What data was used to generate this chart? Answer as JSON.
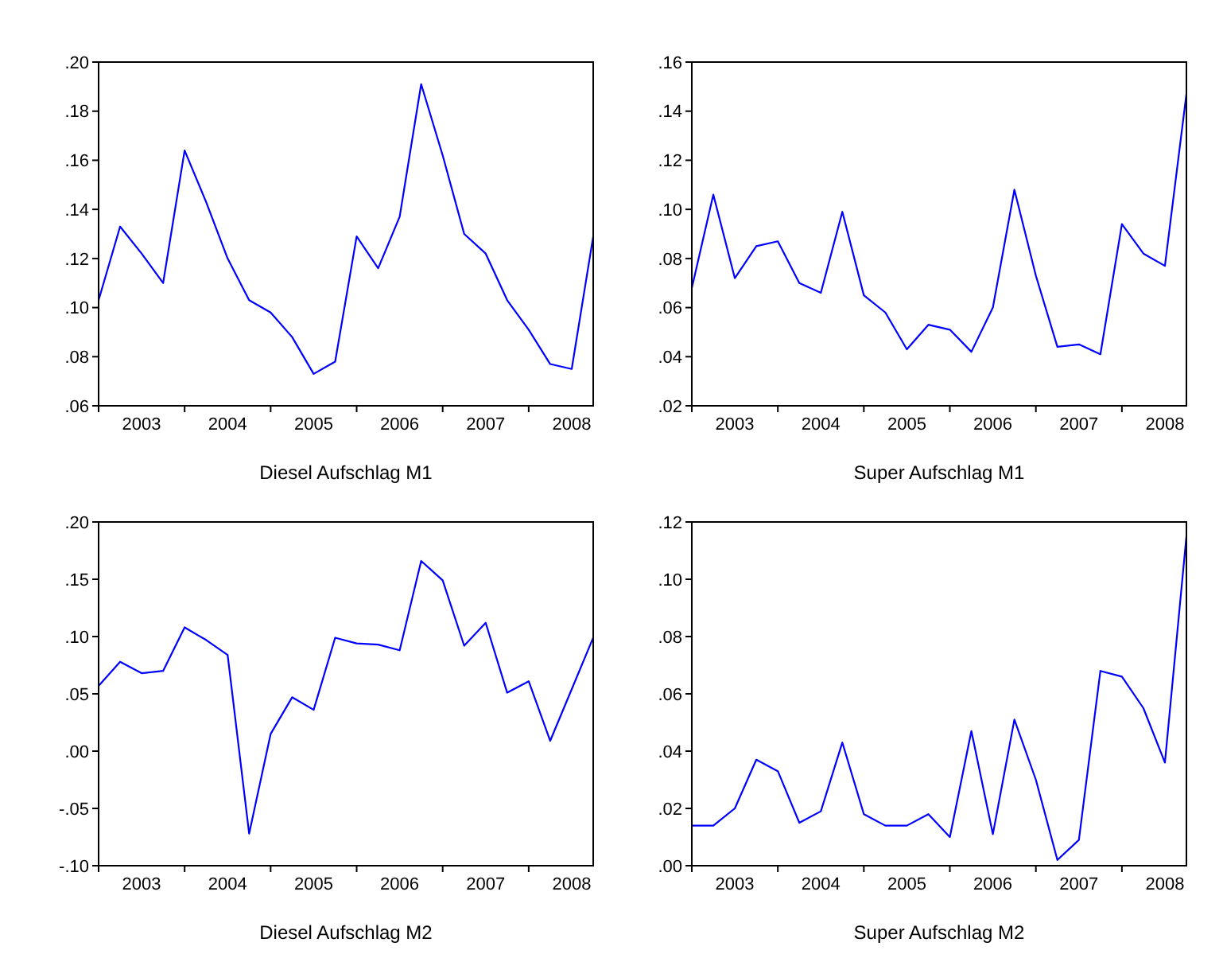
{
  "chart_data": [
    {
      "type": "line",
      "title": "Diesel Aufschlag M1",
      "xlim": [
        2003,
        2008.75
      ],
      "xticks": [
        {
          "value": 2003,
          "label": null
        },
        {
          "value": 2004,
          "label": null
        },
        {
          "value": 2005,
          "label": null
        },
        {
          "value": 2006,
          "label": null
        },
        {
          "value": 2007,
          "label": null
        },
        {
          "value": 2008,
          "label": null
        },
        {
          "value": 2003.5,
          "label": "2003"
        },
        {
          "value": 2004.5,
          "label": "2004"
        },
        {
          "value": 2005.5,
          "label": "2005"
        },
        {
          "value": 2006.5,
          "label": "2006"
        },
        {
          "value": 2007.5,
          "label": "2007"
        },
        {
          "value": 2008.5,
          "label": "2008"
        }
      ],
      "ylim": [
        0.06,
        0.2
      ],
      "yticks": [
        {
          "value": 0.06,
          "label": ".06"
        },
        {
          "value": 0.08,
          "label": ".08"
        },
        {
          "value": 0.1,
          "label": ".10"
        },
        {
          "value": 0.12,
          "label": ".12"
        },
        {
          "value": 0.14,
          "label": ".14"
        },
        {
          "value": 0.16,
          "label": ".16"
        },
        {
          "value": 0.18,
          "label": ".18"
        },
        {
          "value": 0.2,
          "label": ".20"
        }
      ],
      "grid": false,
      "marker": "none",
      "line_style": "solid",
      "x": [
        2003,
        2003.25,
        2003.5,
        2003.75,
        2004,
        2004.25,
        2004.5,
        2004.75,
        2005,
        2005.25,
        2005.5,
        2005.75,
        2006,
        2006.25,
        2006.5,
        2006.75,
        2007,
        2007.25,
        2007.5,
        2007.75,
        2008,
        2008.25,
        2008.5,
        2008.75
      ],
      "series": [
        {
          "color": "#0000ff",
          "values": [
            0.103,
            0.133,
            0.122,
            0.11,
            0.164,
            0.143,
            0.12,
            0.103,
            0.098,
            0.088,
            0.073,
            0.078,
            0.129,
            0.116,
            0.137,
            0.191,
            0.162,
            0.13,
            0.122,
            0.103,
            0.091,
            0.077,
            0.075,
            0.129
          ]
        }
      ]
    },
    {
      "type": "line",
      "title": "Super Aufschlag M1",
      "xlim": [
        2003,
        2008.75
      ],
      "xticks": [
        {
          "value": 2003,
          "label": null
        },
        {
          "value": 2004,
          "label": null
        },
        {
          "value": 2005,
          "label": null
        },
        {
          "value": 2006,
          "label": null
        },
        {
          "value": 2007,
          "label": null
        },
        {
          "value": 2008,
          "label": null
        },
        {
          "value": 2003.5,
          "label": "2003"
        },
        {
          "value": 2004.5,
          "label": "2004"
        },
        {
          "value": 2005.5,
          "label": "2005"
        },
        {
          "value": 2006.5,
          "label": "2006"
        },
        {
          "value": 2007.5,
          "label": "2007"
        },
        {
          "value": 2008.5,
          "label": "2008"
        }
      ],
      "ylim": [
        0.02,
        0.16
      ],
      "yticks": [
        {
          "value": 0.02,
          "label": ".02"
        },
        {
          "value": 0.04,
          "label": ".04"
        },
        {
          "value": 0.06,
          "label": ".06"
        },
        {
          "value": 0.08,
          "label": ".08"
        },
        {
          "value": 0.1,
          "label": ".10"
        },
        {
          "value": 0.12,
          "label": ".12"
        },
        {
          "value": 0.14,
          "label": ".14"
        },
        {
          "value": 0.16,
          "label": ".16"
        }
      ],
      "grid": false,
      "marker": "none",
      "line_style": "solid",
      "x": [
        2003,
        2003.25,
        2003.5,
        2003.75,
        2004,
        2004.25,
        2004.5,
        2004.75,
        2005,
        2005.25,
        2005.5,
        2005.75,
        2006,
        2006.25,
        2006.5,
        2006.75,
        2007,
        2007.25,
        2007.5,
        2007.75,
        2008,
        2008.25,
        2008.5,
        2008.75
      ],
      "series": [
        {
          "color": "#0000ff",
          "values": [
            0.068,
            0.106,
            0.072,
            0.085,
            0.087,
            0.07,
            0.066,
            0.099,
            0.065,
            0.058,
            0.043,
            0.053,
            0.051,
            0.042,
            0.06,
            0.108,
            0.073,
            0.044,
            0.045,
            0.041,
            0.094,
            0.082,
            0.077,
            0.147
          ]
        }
      ]
    },
    {
      "type": "line",
      "title": "Diesel Aufschlag M2",
      "xlim": [
        2003,
        2008.75
      ],
      "xticks": [
        {
          "value": 2003,
          "label": null
        },
        {
          "value": 2004,
          "label": null
        },
        {
          "value": 2005,
          "label": null
        },
        {
          "value": 2006,
          "label": null
        },
        {
          "value": 2007,
          "label": null
        },
        {
          "value": 2008,
          "label": null
        },
        {
          "value": 2003.5,
          "label": "2003"
        },
        {
          "value": 2004.5,
          "label": "2004"
        },
        {
          "value": 2005.5,
          "label": "2005"
        },
        {
          "value": 2006.5,
          "label": "2006"
        },
        {
          "value": 2007.5,
          "label": "2007"
        },
        {
          "value": 2008.5,
          "label": "2008"
        }
      ],
      "ylim": [
        -0.1,
        0.2
      ],
      "yticks": [
        {
          "value": -0.1,
          "label": "-.10"
        },
        {
          "value": -0.05,
          "label": "-.05"
        },
        {
          "value": 0,
          "label": ".00"
        },
        {
          "value": 0.05,
          "label": ".05"
        },
        {
          "value": 0.1,
          "label": ".10"
        },
        {
          "value": 0.15,
          "label": ".15"
        },
        {
          "value": 0.2,
          "label": ".20"
        }
      ],
      "grid": false,
      "marker": "none",
      "line_style": "solid",
      "x": [
        2003,
        2003.25,
        2003.5,
        2003.75,
        2004,
        2004.25,
        2004.5,
        2004.75,
        2005,
        2005.25,
        2005.5,
        2005.75,
        2006,
        2006.25,
        2006.5,
        2006.75,
        2007,
        2007.25,
        2007.5,
        2007.75,
        2008,
        2008.25,
        2008.5,
        2008.75
      ],
      "series": [
        {
          "color": "#0000ff",
          "values": [
            0.057,
            0.078,
            0.068,
            0.07,
            0.108,
            0.097,
            0.084,
            -0.072,
            0.015,
            0.047,
            0.036,
            0.099,
            0.094,
            0.093,
            0.088,
            0.166,
            0.149,
            0.092,
            0.112,
            0.051,
            0.061,
            0.009,
            0.054,
            0.099
          ]
        }
      ]
    },
    {
      "type": "line",
      "title": "Super Aufschlag M2",
      "xlim": [
        2003,
        2008.75
      ],
      "xticks": [
        {
          "value": 2003,
          "label": null
        },
        {
          "value": 2004,
          "label": null
        },
        {
          "value": 2005,
          "label": null
        },
        {
          "value": 2006,
          "label": null
        },
        {
          "value": 2007,
          "label": null
        },
        {
          "value": 2008,
          "label": null
        },
        {
          "value": 2003.5,
          "label": "2003"
        },
        {
          "value": 2004.5,
          "label": "2004"
        },
        {
          "value": 2005.5,
          "label": "2005"
        },
        {
          "value": 2006.5,
          "label": "2006"
        },
        {
          "value": 2007.5,
          "label": "2007"
        },
        {
          "value": 2008.5,
          "label": "2008"
        }
      ],
      "ylim": [
        0,
        0.12
      ],
      "yticks": [
        {
          "value": 0,
          "label": ".00"
        },
        {
          "value": 0.02,
          "label": ".02"
        },
        {
          "value": 0.04,
          "label": ".04"
        },
        {
          "value": 0.06,
          "label": ".06"
        },
        {
          "value": 0.08,
          "label": ".08"
        },
        {
          "value": 0.1,
          "label": ".10"
        },
        {
          "value": 0.12,
          "label": ".12"
        }
      ],
      "grid": false,
      "marker": "none",
      "line_style": "solid",
      "x": [
        2003,
        2003.25,
        2003.5,
        2003.75,
        2004,
        2004.25,
        2004.5,
        2004.75,
        2005,
        2005.25,
        2005.5,
        2005.75,
        2006,
        2006.25,
        2006.5,
        2006.75,
        2007,
        2007.25,
        2007.5,
        2007.75,
        2008,
        2008.25,
        2008.5,
        2008.75
      ],
      "series": [
        {
          "color": "#0000ff",
          "values": [
            0.014,
            0.014,
            0.02,
            0.037,
            0.033,
            0.015,
            0.019,
            0.043,
            0.018,
            0.014,
            0.014,
            0.018,
            0.01,
            0.047,
            0.011,
            0.051,
            0.03,
            0.002,
            0.009,
            0.068,
            0.066,
            0.055,
            0.036,
            0.115
          ]
        }
      ]
    }
  ]
}
